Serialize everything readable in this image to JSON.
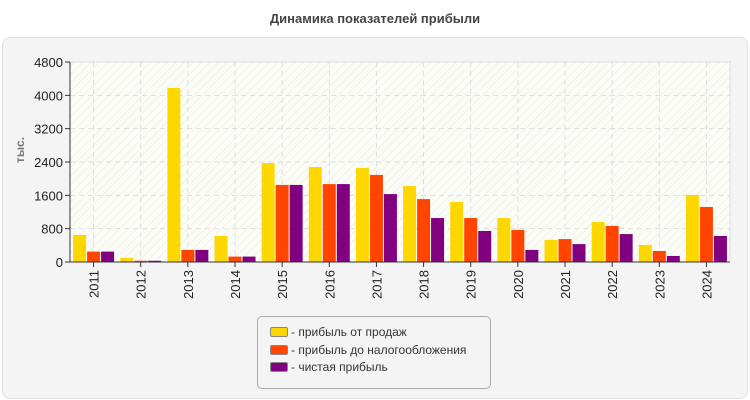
{
  "chart_data": {
    "type": "bar",
    "title": "Динамика показателей прибыли",
    "xlabel": "",
    "ylabel": "тыс.",
    "ylim": [
      0,
      4800
    ],
    "yticks": [
      0,
      800,
      1600,
      2400,
      3200,
      4000,
      4800
    ],
    "grid": true,
    "legend_position": "bottom",
    "categories": [
      "2011",
      "2012",
      "2013",
      "2014",
      "2015",
      "2016",
      "2017",
      "2018",
      "2019",
      "2020",
      "2021",
      "2022",
      "2023",
      "2024"
    ],
    "series": [
      {
        "name": "- прибыль от продаж",
        "color": "#FFD700",
        "values": [
          650,
          100,
          4175,
          625,
          2375,
          2280,
          2255,
          1825,
          1440,
          1055,
          530,
          960,
          410,
          1610
        ]
      },
      {
        "name": "- прибыль до налогообложения",
        "color": "#FF4500",
        "values": [
          250,
          30,
          290,
          130,
          1850,
          1870,
          2090,
          1510,
          1055,
          770,
          550,
          865,
          265,
          1320
        ]
      },
      {
        "name": "- чистая прибыль",
        "color": "#800080",
        "values": [
          250,
          30,
          290,
          130,
          1850,
          1870,
          1630,
          1055,
          745,
          290,
          430,
          670,
          145,
          625
        ]
      }
    ]
  }
}
